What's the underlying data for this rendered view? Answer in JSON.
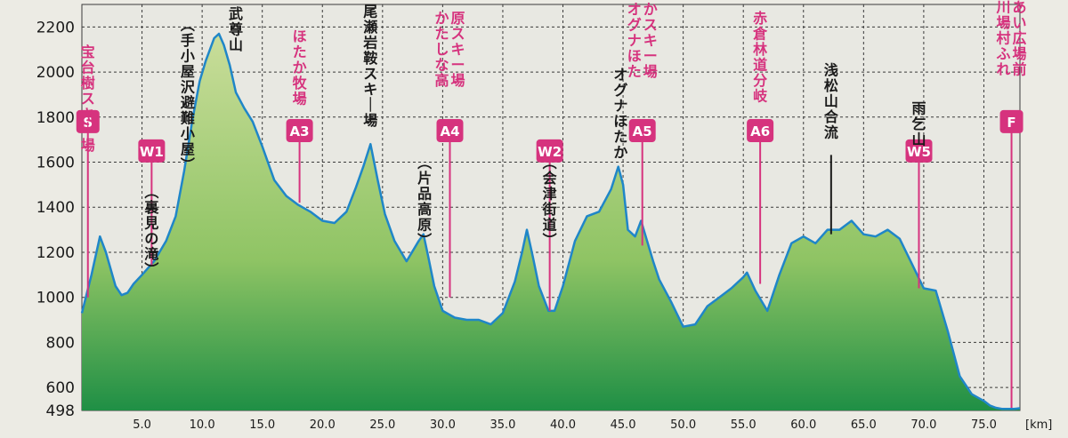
{
  "chart_data": {
    "type": "area",
    "title": "",
    "xlabel": "",
    "ylabel": "",
    "x_unit": "[km]",
    "xlim": [
      0,
      78
    ],
    "ylim": [
      498,
      2300
    ],
    "x_ticks": [
      5,
      10,
      15,
      20,
      25,
      30,
      35,
      40,
      45,
      50,
      55,
      60,
      65,
      70,
      75
    ],
    "x_tick_labels": [
      "5.0",
      "10.0",
      "15.0",
      "20.0",
      "25.0",
      "30.0",
      "35.0",
      "40.0",
      "45.0",
      "50.0",
      "55.0",
      "60.0",
      "65.0",
      "70.0",
      "75.0"
    ],
    "y_ticks": [
      498,
      600,
      800,
      1000,
      1200,
      1400,
      1600,
      1800,
      2000,
      2200
    ],
    "y_tick_labels": [
      "498",
      "600",
      "800",
      "1000",
      "1200",
      "1400",
      "1600",
      "1800",
      "2000",
      "2200"
    ],
    "grid": true,
    "colors": {
      "line": "#1f86c8",
      "fill_top": "#c9dd9a",
      "fill_mid": "#8fc464",
      "fill_bottom": "#1f8f45",
      "checkpoint": "#d6337e",
      "grid": "#3a3a3a",
      "plot_bg": "#e8e8e2"
    },
    "series": [
      {
        "x": [
          0,
          0.8,
          1.5,
          2,
          2.8,
          3.3,
          3.8,
          4.3,
          5,
          6,
          7,
          7.8,
          8.5,
          9.2,
          9.8,
          10.3,
          11,
          11.4,
          11.8,
          12.3,
          12.8,
          13.5,
          14.2,
          15,
          16,
          17,
          18,
          19,
          20,
          21,
          22,
          22.8,
          23.4,
          24,
          24.6,
          25.2,
          26,
          27,
          28,
          28.4,
          28.8,
          29.3,
          30,
          31,
          32,
          33,
          34,
          35,
          36,
          36.6,
          37,
          37.5,
          38,
          38.8,
          39.3,
          40,
          41,
          42,
          43,
          44,
          44.6,
          45,
          45.4,
          46,
          46.5,
          47,
          47.5,
          48,
          49,
          50,
          51,
          52,
          53,
          54,
          55,
          55.3,
          56,
          57,
          58,
          59,
          60,
          61,
          62,
          63,
          64,
          65,
          66,
          67,
          68,
          69,
          70,
          71,
          72,
          73,
          74,
          75,
          75.5,
          76,
          76.5,
          77.5,
          78
        ],
        "y": [
          930,
          1100,
          1270,
          1200,
          1050,
          1010,
          1020,
          1060,
          1100,
          1160,
          1250,
          1360,
          1560,
          1790,
          1960,
          2050,
          2150,
          2170,
          2120,
          2030,
          1910,
          1840,
          1780,
          1670,
          1520,
          1450,
          1410,
          1380,
          1340,
          1330,
          1380,
          1490,
          1580,
          1680,
          1520,
          1370,
          1250,
          1160,
          1250,
          1280,
          1180,
          1050,
          940,
          910,
          900,
          900,
          880,
          930,
          1070,
          1200,
          1300,
          1180,
          1050,
          940,
          940,
          1050,
          1250,
          1360,
          1380,
          1480,
          1580,
          1500,
          1300,
          1270,
          1340,
          1250,
          1160,
          1080,
          980,
          870,
          880,
          960,
          1000,
          1040,
          1090,
          1110,
          1030,
          940,
          1100,
          1240,
          1270,
          1240,
          1300,
          1300,
          1340,
          1280,
          1270,
          1300,
          1260,
          1150,
          1040,
          1030,
          850,
          650,
          570,
          540,
          520,
          510,
          505,
          505,
          508
        ]
      }
    ],
    "checkpoints": [
      {
        "id": "S",
        "x": 0.5,
        "label": "宝台樹スキー場",
        "label_color": "#d6337e",
        "label_top_y": 2130,
        "box_y": 1780,
        "line_bottom_y": 1000
      },
      {
        "id": "W1",
        "x": 5.8,
        "label": "(裏見の滝)",
        "label_color": "#1a1a1a",
        "label_top_y": 1510,
        "box_y": 1650,
        "line_bottom_y": 1140
      },
      {
        "id": "",
        "x": 8.8,
        "label": "(手小屋沢避難小屋)",
        "label_color": "#1a1a1a",
        "label_top_y": 2250,
        "box_y": null,
        "line_bottom_y": null
      },
      {
        "id": "",
        "x": 12.8,
        "label": "武尊山",
        "label_color": "#1a1a1a",
        "label_top_y": 2300,
        "box_y": null,
        "line_bottom_y": null
      },
      {
        "id": "A3",
        "x": 18.1,
        "label": "ほたか牧場",
        "label_color": "#d6337e",
        "label_top_y": 2200,
        "box_y": 1740,
        "line_bottom_y": 1420
      },
      {
        "id": "",
        "x": 24.0,
        "label": "尾瀬岩鞍スキー場",
        "label_color": "#1a1a1a",
        "label_top_y": 2310,
        "box_y": null,
        "line_bottom_y": null
      },
      {
        "id": "A4",
        "x": 30.6,
        "label": "かたしな高原スキー場",
        "label_color": "#d6337e",
        "label_top_y": 2280,
        "box_y": 1740,
        "line_bottom_y": 1000
      },
      {
        "id": "",
        "x": 28.5,
        "label": "(片品高原)",
        "label_color": "#1a1a1a",
        "label_top_y": 1640,
        "box_y": null,
        "line_bottom_y": null
      },
      {
        "id": "W2",
        "x": 38.9,
        "label": "(会津街道)",
        "label_color": "#1a1a1a",
        "label_top_y": 1640,
        "box_y": 1650,
        "line_bottom_y": 940
      },
      {
        "id": "",
        "x": 44.8,
        "label": "オグナほたか",
        "label_color": "#1a1a1a",
        "label_top_y": 2030,
        "box_y": null,
        "line_bottom_y": null
      },
      {
        "id": "A5",
        "x": 46.6,
        "label": "オグナほたかスキー場",
        "label_color": "#d6337e",
        "label_top_y": 2320,
        "box_y": 1740,
        "line_bottom_y": 1230
      },
      {
        "id": "A6",
        "x": 56.4,
        "label": "赤倉林道分岐",
        "label_color": "#d6337e",
        "label_top_y": 2280,
        "box_y": 1740,
        "line_bottom_y": 1060
      },
      {
        "id": "",
        "x": 62.3,
        "label": "浅松山合流",
        "label_color": "#1a1a1a",
        "label_top_y": 2050,
        "box_y": null,
        "line_bottom_y": 1280
      },
      {
        "id": "W5",
        "x": 69.6,
        "label": "雨乞山",
        "label_color": "#1a1a1a",
        "label_top_y": 1880,
        "box_y": 1650,
        "line_bottom_y": 1040
      },
      {
        "id": "F",
        "x": 77.3,
        "label": "川場村ふれあい広場前",
        "label_color": "#d6337e",
        "label_top_y": 2330,
        "box_y": 1780,
        "line_bottom_y": 510
      }
    ]
  }
}
